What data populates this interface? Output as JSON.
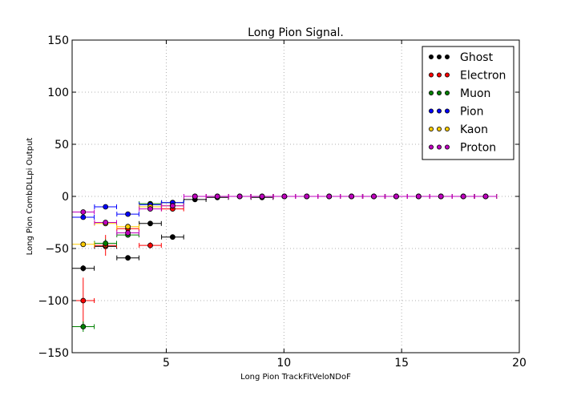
{
  "chart_data": {
    "type": "scatter",
    "title": "Long Pion Signal.",
    "xlabel": "Long Pion TrackFitVeloNDoF",
    "ylabel": "Long Pion CombDLLpi Output",
    "xlim": [
      1,
      20
    ],
    "ylim": [
      -150,
      150
    ],
    "xticks": [
      5,
      10,
      15,
      20
    ],
    "yticks": [
      -150,
      -100,
      -50,
      0,
      50,
      100,
      150
    ],
    "grid": true,
    "legend_position": "top-right",
    "xerr_half_width": 0.47,
    "series": [
      {
        "name": "Ghost",
        "color": "#000000",
        "x": [
          1.47,
          2.42,
          3.37,
          4.32,
          5.27,
          6.22,
          7.17,
          8.12,
          9.07,
          10.02,
          10.97,
          11.92,
          12.87,
          13.82,
          14.77,
          15.72,
          16.67,
          17.62,
          18.57
        ],
        "y": [
          -69,
          -48,
          -59,
          -26,
          -39,
          -3,
          -1,
          0,
          -1,
          0,
          0,
          0,
          0,
          0,
          0,
          0,
          0,
          0,
          0
        ],
        "yerr": [
          3,
          3,
          2,
          2,
          2,
          1,
          1,
          1,
          1,
          0,
          0,
          0,
          0,
          0,
          0,
          0,
          0,
          0,
          0
        ]
      },
      {
        "name": "Electron",
        "color": "#ff0000",
        "x": [
          1.47,
          2.42,
          3.37,
          4.32,
          5.27,
          6.22,
          7.17,
          8.12,
          9.07,
          10.02,
          10.97,
          11.92,
          12.87,
          13.82,
          14.77,
          15.72,
          16.67,
          17.62,
          18.57
        ],
        "y": [
          -100,
          -47,
          -31,
          -47,
          -12,
          0,
          0,
          0,
          0,
          0,
          0,
          0,
          0,
          0,
          0,
          0,
          0,
          0,
          0
        ],
        "yerr": [
          22,
          10,
          4,
          3,
          2,
          1,
          0,
          0,
          0,
          0,
          0,
          0,
          0,
          0,
          0,
          0,
          0,
          0,
          0
        ]
      },
      {
        "name": "Muon",
        "color": "#008000",
        "x": [
          1.47,
          2.42,
          3.37,
          4.32,
          5.27,
          6.22,
          7.17,
          8.12,
          9.07,
          10.02,
          10.97,
          11.92,
          12.87,
          13.82,
          14.77,
          15.72,
          16.67,
          17.62,
          18.57
        ],
        "y": [
          -125,
          -45,
          -37,
          -7,
          -6,
          0,
          0,
          0,
          0,
          0,
          0,
          0,
          0,
          0,
          0,
          0,
          0,
          0,
          0
        ],
        "yerr": [
          5,
          4,
          2,
          1,
          1,
          0,
          0,
          0,
          0,
          0,
          0,
          0,
          0,
          0,
          0,
          0,
          0,
          0,
          0
        ]
      },
      {
        "name": "Pion",
        "color": "#0000ff",
        "x": [
          1.47,
          2.42,
          3.37,
          4.32,
          5.27,
          6.22,
          7.17,
          8.12,
          9.07,
          10.02,
          10.97,
          11.92,
          12.87,
          13.82,
          14.77,
          15.72,
          16.67,
          17.62,
          18.57
        ],
        "y": [
          -20,
          -10,
          -17,
          -8,
          -6,
          0,
          0,
          0,
          0,
          0,
          0,
          0,
          0,
          0,
          0,
          0,
          0,
          0,
          0
        ],
        "yerr": [
          1,
          1,
          1,
          1,
          0,
          0,
          0,
          0,
          0,
          0,
          0,
          0,
          0,
          0,
          0,
          0,
          0,
          0,
          0
        ]
      },
      {
        "name": "Kaon",
        "color": "#ffcc00",
        "x": [
          1.47,
          2.42,
          3.37,
          4.32,
          5.27,
          6.22,
          7.17,
          8.12,
          9.07,
          10.02,
          10.97,
          11.92,
          12.87,
          13.82,
          14.77,
          15.72,
          16.67,
          17.62,
          18.57
        ],
        "y": [
          -46,
          -26,
          -29,
          -10,
          -9,
          0,
          0,
          0,
          0,
          0,
          0,
          0,
          0,
          0,
          0,
          0,
          0,
          0,
          0
        ],
        "yerr": [
          2,
          1,
          1,
          1,
          1,
          0,
          0,
          0,
          0,
          0,
          0,
          0,
          0,
          0,
          0,
          0,
          0,
          0,
          0
        ]
      },
      {
        "name": "Proton",
        "color": "#bf00bf",
        "x": [
          1.47,
          2.42,
          3.37,
          4.32,
          5.27,
          6.22,
          7.17,
          8.12,
          9.07,
          10.02,
          10.97,
          11.92,
          12.87,
          13.82,
          14.77,
          15.72,
          16.67,
          17.62,
          18.57
        ],
        "y": [
          -15,
          -25,
          -35,
          -12,
          -9,
          0,
          0,
          0,
          0,
          0,
          0,
          0,
          0,
          0,
          0,
          0,
          0,
          0,
          0
        ],
        "yerr": [
          1,
          1,
          2,
          1,
          1,
          0,
          0,
          0,
          0,
          0,
          0,
          0,
          0,
          0,
          0,
          0,
          0,
          0,
          0
        ]
      }
    ]
  }
}
